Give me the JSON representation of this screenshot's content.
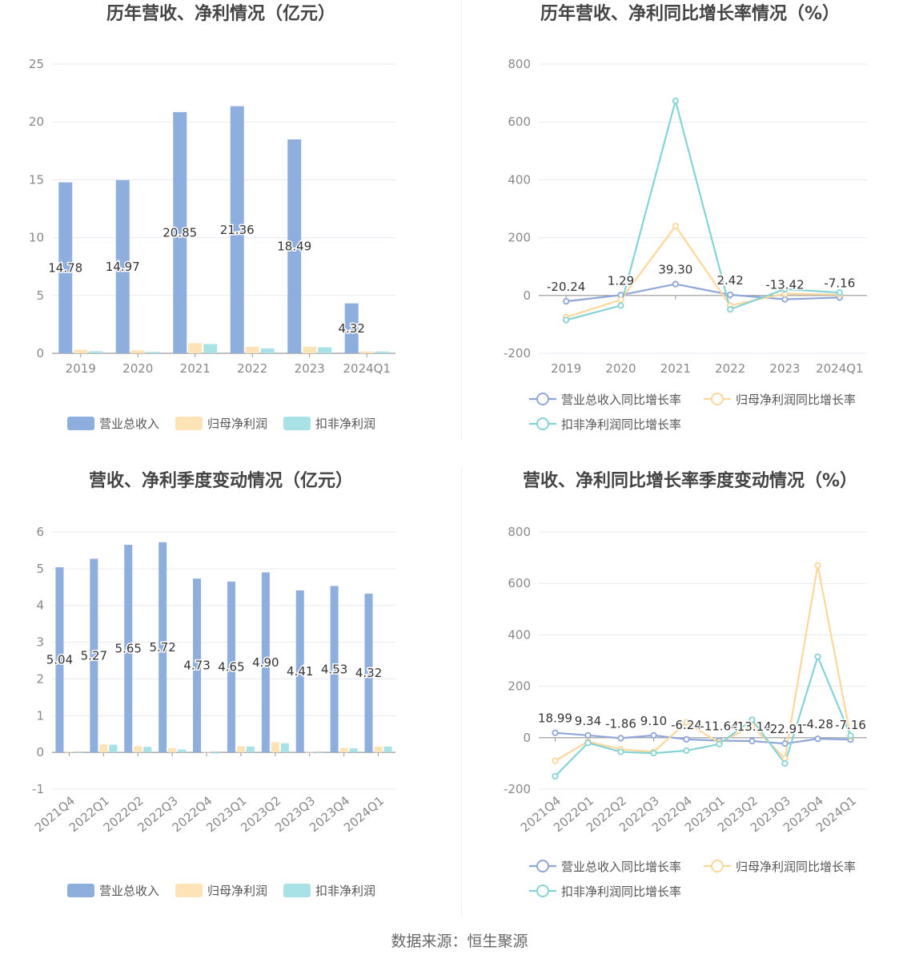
{
  "colors": {
    "revenue": "#8eaede",
    "profit": "#fde3b5",
    "deduct": "#a8e2e6",
    "revenue_line": "#8ea6d8",
    "profit_line": "#fcd79b",
    "deduct_line": "#86d3d6"
  },
  "chart_data": [
    {
      "type": "bar",
      "title": "历年营收、净利情况（亿元）",
      "categories": [
        "2019",
        "2020",
        "2021",
        "2022",
        "2023",
        "2024Q1"
      ],
      "ylim": [
        0,
        25
      ],
      "yticks": [
        0,
        5,
        10,
        15,
        20,
        25
      ],
      "series": [
        {
          "name": "营业总收入",
          "values": [
            14.78,
            14.97,
            20.85,
            21.36,
            18.49,
            4.32
          ],
          "labels": [
            "14.78",
            "14.97",
            "20.85",
            "21.36",
            "18.49",
            "4.32"
          ]
        },
        {
          "name": "归母净利润",
          "values": [
            0.31,
            0.26,
            0.88,
            0.55,
            0.58,
            0.16
          ]
        },
        {
          "name": "扣非净利润",
          "values": [
            0.18,
            0.12,
            0.8,
            0.43,
            0.52,
            0.16
          ]
        }
      ],
      "legend": "bottom",
      "grid": true
    },
    {
      "type": "line",
      "title": "历年营收、净利同比增长率情况（%）",
      "categories": [
        "2019",
        "2020",
        "2021",
        "2022",
        "2023",
        "2024Q1"
      ],
      "ylim": [
        -200,
        800
      ],
      "yticks": [
        -200,
        0,
        200,
        400,
        600,
        800
      ],
      "series": [
        {
          "name": "营业总收入同比增长率",
          "values": [
            -20.24,
            1.29,
            39.3,
            2.42,
            -13.42,
            -7.16
          ],
          "labels": [
            "-20.24",
            "1.29",
            "39.30",
            "2.42",
            "-13.42",
            "-7.16"
          ]
        },
        {
          "name": "归母净利润同比增长率",
          "values": [
            -75,
            -15,
            240,
            -35,
            6,
            3
          ]
        },
        {
          "name": "扣非净利润同比增长率",
          "values": [
            -85,
            -35,
            673,
            -48,
            22,
            10
          ]
        }
      ],
      "legend": "bottom",
      "grid": true
    },
    {
      "type": "bar",
      "title": "营收、净利季度变动情况（亿元）",
      "categories": [
        "2021Q4",
        "2022Q1",
        "2022Q2",
        "2022Q3",
        "2022Q4",
        "2023Q1",
        "2023Q2",
        "2023Q3",
        "2023Q4",
        "2024Q1"
      ],
      "ylim": [
        -1,
        6
      ],
      "yticks": [
        -1,
        0,
        1,
        2,
        3,
        4,
        5,
        6
      ],
      "series": [
        {
          "name": "营业总收入",
          "values": [
            5.04,
            5.27,
            5.65,
            5.72,
            4.73,
            4.65,
            4.9,
            4.41,
            4.53,
            4.32
          ],
          "labels": [
            "5.04",
            "5.27",
            "5.65",
            "5.72",
            "4.73",
            "4.65",
            "4.90",
            "4.41",
            "4.53",
            "4.32"
          ]
        },
        {
          "name": "归母净利润",
          "values": [
            0.02,
            0.22,
            0.17,
            0.12,
            0.01,
            0.17,
            0.28,
            0.01,
            0.12,
            0.16
          ]
        },
        {
          "name": "扣非净利润",
          "values": [
            -0.01,
            0.21,
            0.15,
            0.08,
            -0.03,
            0.16,
            0.25,
            -0.01,
            0.11,
            0.16
          ]
        }
      ],
      "legend": "bottom",
      "grid": true
    },
    {
      "type": "line",
      "title": "营收、净利同比增长率季度变动情况（%）",
      "categories": [
        "2021Q4",
        "2022Q1",
        "2022Q2",
        "2022Q3",
        "2022Q4",
        "2023Q1",
        "2023Q2",
        "2023Q3",
        "2023Q4",
        "2024Q1"
      ],
      "ylim": [
        -200,
        800
      ],
      "yticks": [
        -200,
        0,
        200,
        400,
        600,
        800
      ],
      "series": [
        {
          "name": "营业总收入同比增长率",
          "values": [
            18.99,
            9.34,
            -1.86,
            9.1,
            -6.24,
            -11.64,
            -13.14,
            -22.91,
            -4.28,
            -7.16
          ],
          "labels": [
            "18.99",
            "9.34",
            "-1.86",
            "9.10",
            "-6.24",
            "-11.64",
            "-13.14",
            "-22.91",
            "-4.28",
            "-7.16"
          ]
        },
        {
          "name": "归母净利润同比增长率",
          "values": [
            -90,
            -15,
            -45,
            -55,
            60,
            -20,
            45,
            -80,
            670,
            5
          ]
        },
        {
          "name": "扣非净利润同比增长率",
          "values": [
            -150,
            -20,
            -55,
            -60,
            -50,
            -25,
            70,
            -100,
            315,
            8
          ]
        }
      ],
      "legend": "bottom",
      "grid": true
    }
  ],
  "footer": {
    "source": "数据来源：恒生聚源"
  }
}
